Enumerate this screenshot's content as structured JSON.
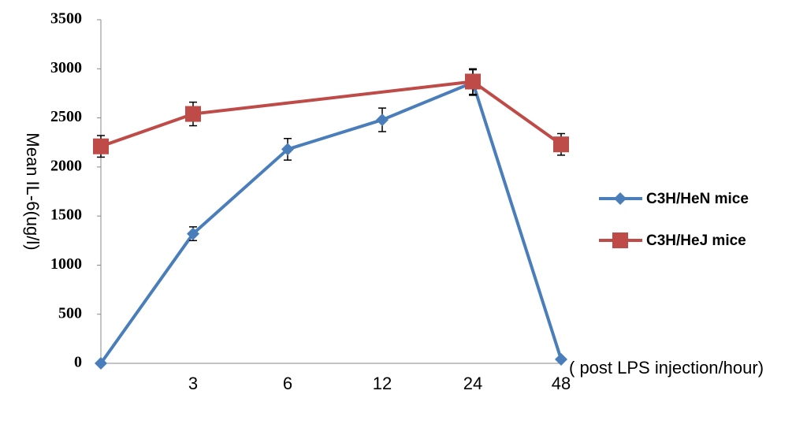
{
  "chart_data": {
    "type": "line",
    "categories": [
      null,
      "3",
      "6",
      "12",
      "24",
      "48"
    ],
    "series": [
      {
        "name": "C3H/HeN mice",
        "color": "#4a7ebb",
        "marker": "diamond",
        "values": [
          0,
          1320,
          2180,
          2480,
          2860,
          40
        ],
        "errors": [
          0,
          70,
          110,
          120,
          130,
          0
        ]
      },
      {
        "name": "C3H/HeJ mice",
        "color": "#be4b48",
        "marker": "square",
        "values": [
          2210,
          2540,
          null,
          null,
          2870,
          2230
        ],
        "errors": [
          110,
          120,
          null,
          null,
          130,
          110
        ]
      }
    ],
    "ylabel": "Mean IL-6(ug/l)",
    "xlabel": "( post LPS injection/hour)",
    "ylim": [
      0,
      3500
    ],
    "yticks": [
      0,
      500,
      1000,
      1500,
      2000,
      2500,
      3000,
      3500
    ],
    "legend": "right"
  }
}
